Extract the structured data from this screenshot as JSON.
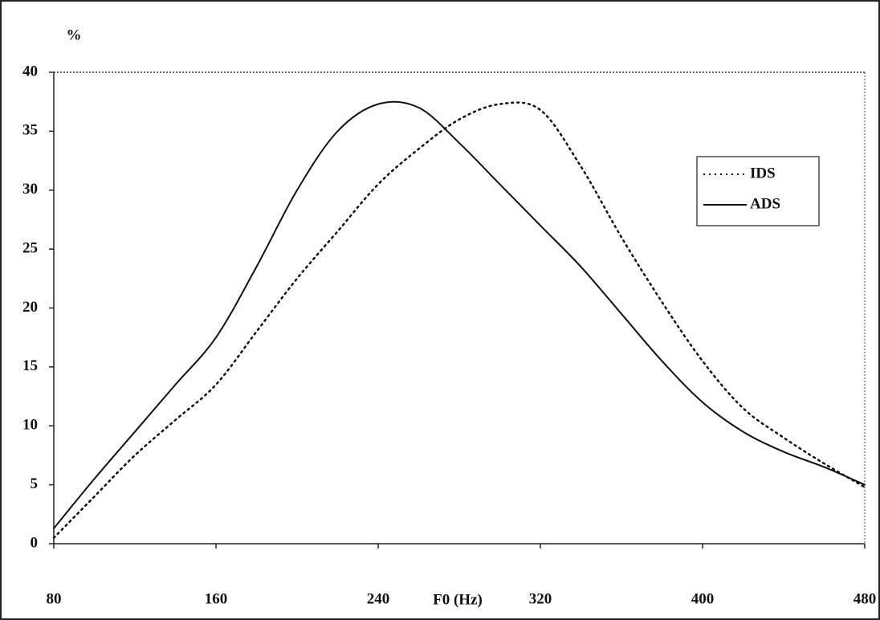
{
  "chart_data": {
    "type": "line",
    "y_label": "%",
    "x_label": "F0 (Hz)",
    "x": [
      80,
      100,
      120,
      140,
      160,
      180,
      200,
      220,
      240,
      260,
      280,
      300,
      320,
      340,
      360,
      380,
      400,
      420,
      440,
      460,
      480
    ],
    "series": [
      {
        "name": "IDS",
        "color": "#111111",
        "dash": "dotted",
        "values": [
          0.5,
          4,
          7.5,
          10.5,
          13.5,
          18,
          22.5,
          26.5,
          30.5,
          33.5,
          36,
          37.3,
          36.8,
          32,
          26,
          20.5,
          15.5,
          11.5,
          9,
          6.8,
          4.8
        ]
      },
      {
        "name": "ADS",
        "color": "#111111",
        "dash": "solid",
        "values": [
          1.3,
          5.5,
          9.5,
          13.5,
          17.5,
          23.5,
          30,
          35,
          37.3,
          37,
          34,
          30.5,
          27,
          23.5,
          19.5,
          15.5,
          12,
          9.5,
          7.8,
          6.5,
          5
        ]
      }
    ],
    "xlim": [
      80,
      480
    ],
    "xticks": [
      80,
      160,
      240,
      320,
      400,
      480
    ],
    "ylim": [
      0,
      40
    ],
    "yticks": [
      0,
      5,
      10,
      15,
      20,
      25,
      30,
      35,
      40
    ],
    "legend": "right"
  }
}
